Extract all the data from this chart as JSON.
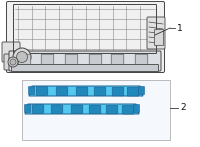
{
  "bg_color": "#ffffff",
  "box_color": "#f5f8fc",
  "box_border": "#bbbbbb",
  "gasket_fill": "#55c8f0",
  "gasket_stroke": "#1a6090",
  "gasket_dark": "#2288bb",
  "manifold_fill": "#f0f0f0",
  "manifold_stroke": "#444444",
  "manifold_line": "#888888",
  "label1": "1",
  "label2": "2"
}
